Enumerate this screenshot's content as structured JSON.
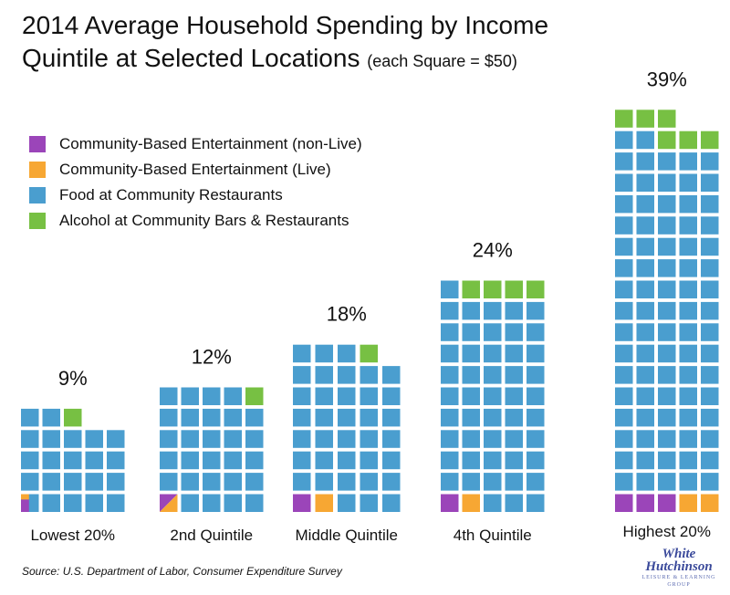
{
  "title": {
    "line1": "2014 Average Household Spending by Income",
    "line2": "Quintile at Selected Locations",
    "note": "(each Square = $50)"
  },
  "source": "Source: U.S. Department of Labor, Consumer Expenditure Survey",
  "logo": {
    "line1": "White",
    "line2": "Hutchinson",
    "tagline": "LEISURE & LEARNING GROUP"
  },
  "colors": {
    "non_live": "#9b45b9",
    "live": "#f7a733",
    "food": "#4a9ecf",
    "alcohol": "#77c043"
  },
  "legend": [
    {
      "label": "Community-Based Entertainment (non-Live)",
      "color": "#9b45b9"
    },
    {
      "label": "Community-Based Entertainment (Live)",
      "color": "#f7a733"
    },
    {
      "label": "Food at Community Restaurants",
      "color": "#4a9ecf"
    },
    {
      "label": "Alcohol at Community Bars & Restaurants",
      "color": "#77c043"
    }
  ],
  "chart_data": {
    "type": "waffle",
    "unit": "each Square = $50",
    "categories": [
      "Lowest 20%",
      "2nd Quintile",
      "Middle Quintile",
      "4th Quintile",
      "Highest 20%"
    ],
    "share_labels": [
      "9%",
      "12%",
      "18%",
      "24%",
      "39%"
    ],
    "series": [
      {
        "name": "Community-Based Entertainment (non-Live)",
        "values": [
          0.5,
          0.5,
          1,
          1,
          3
        ]
      },
      {
        "name": "Community-Based Entertainment (Live)",
        "values": [
          0.5,
          0.5,
          1,
          1,
          2
        ]
      },
      {
        "name": "Food at Community Restaurants",
        "values": [
          21,
          28,
          36,
          49,
          82
        ]
      },
      {
        "name": "Alcohol at Community Bars & Restaurants",
        "values": [
          1,
          1,
          1,
          4,
          6
        ]
      }
    ],
    "columns_per_group": 5,
    "grid": false,
    "legend_position": "top-left"
  }
}
